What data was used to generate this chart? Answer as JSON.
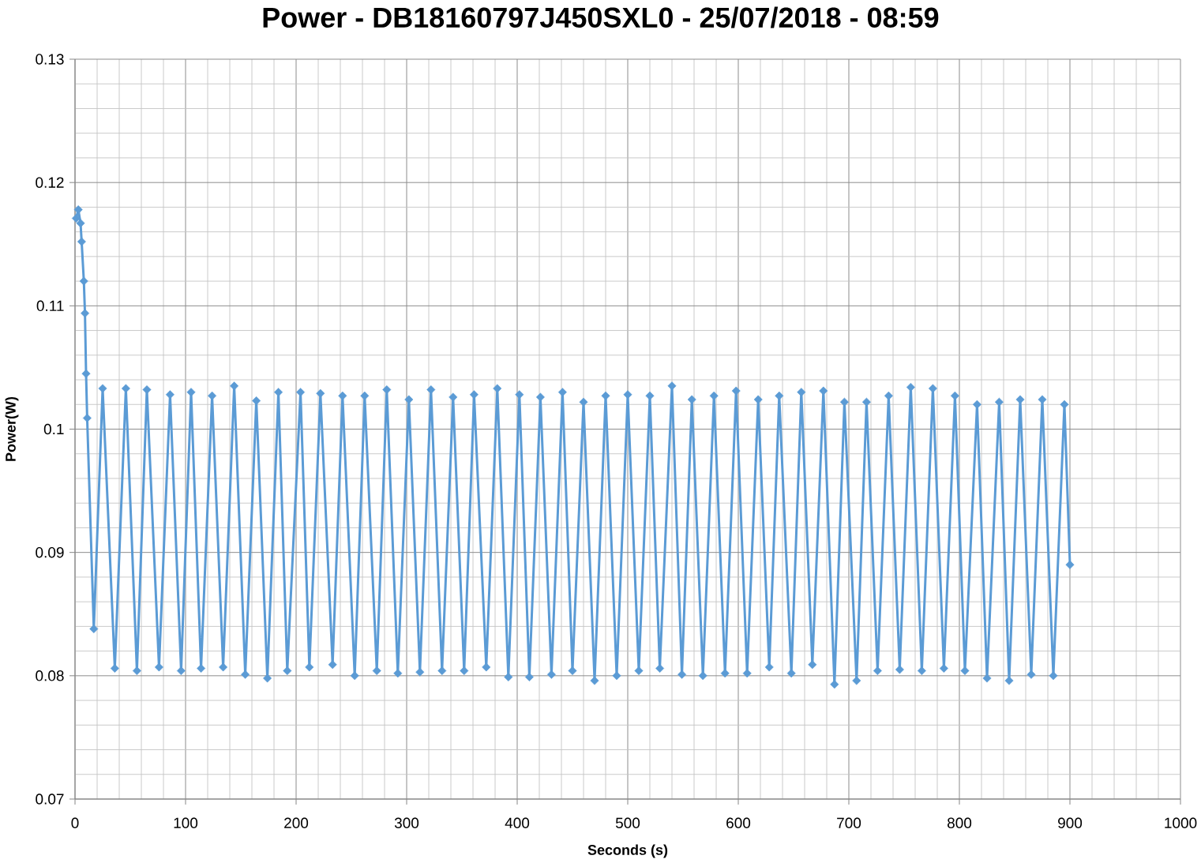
{
  "chart_data": {
    "type": "line",
    "title": "Power - DB18160797J450SXL0 - 25/07/2018 - 08:59",
    "xlabel": "Seconds (s)",
    "ylabel": "Power(W)",
    "x": [
      1,
      3,
      5,
      6,
      8,
      9,
      10,
      11,
      17,
      25,
      36,
      46,
      56,
      65,
      76,
      86,
      96,
      105,
      114,
      124,
      134,
      144,
      154,
      164,
      174,
      184,
      192,
      204,
      212,
      222,
      233,
      242,
      253,
      262,
      273,
      282,
      292,
      302,
      312,
      322,
      332,
      342,
      352,
      361,
      372,
      382,
      392,
      402,
      411,
      421,
      431,
      441,
      450,
      460,
      470,
      480,
      490,
      500,
      510,
      520,
      529,
      540,
      549,
      558,
      568,
      578,
      588,
      598,
      608,
      618,
      628,
      637,
      648,
      657,
      667,
      677,
      687,
      696,
      707,
      716,
      726,
      736,
      746,
      756,
      766,
      776,
      786,
      796,
      805,
      816,
      825,
      836,
      845,
      855,
      865,
      875,
      885,
      895,
      900
    ],
    "values": [
      0.1171,
      0.1178,
      0.1167,
      0.1152,
      0.112,
      0.1094,
      0.1045,
      0.1009,
      0.0838,
      0.1033,
      0.0806,
      0.1033,
      0.0804,
      0.1032,
      0.0807,
      0.1028,
      0.0804,
      0.103,
      0.0806,
      0.1027,
      0.0807,
      0.1035,
      0.0801,
      0.1023,
      0.0798,
      0.103,
      0.0804,
      0.103,
      0.0807,
      0.1029,
      0.0809,
      0.1027,
      0.08,
      0.1027,
      0.0804,
      0.1032,
      0.0802,
      0.1024,
      0.0803,
      0.1032,
      0.0804,
      0.1026,
      0.0804,
      0.1028,
      0.0807,
      0.1033,
      0.0799,
      0.1028,
      0.0799,
      0.1026,
      0.0801,
      0.103,
      0.0804,
      0.1022,
      0.0796,
      0.1027,
      0.08,
      0.1028,
      0.0804,
      0.1027,
      0.0806,
      0.1035,
      0.0801,
      0.1024,
      0.08,
      0.1027,
      0.0802,
      0.1031,
      0.0802,
      0.1024,
      0.0807,
      0.1027,
      0.0802,
      0.103,
      0.0809,
      0.1031,
      0.0793,
      0.1022,
      0.0796,
      0.1022,
      0.0804,
      0.1027,
      0.0805,
      0.1034,
      0.0804,
      0.1033,
      0.0806,
      0.1027,
      0.0804,
      0.102,
      0.0798,
      0.1022,
      0.0796,
      0.1024,
      0.0801,
      0.1024,
      0.08,
      0.102,
      0.089
    ],
    "color": "#5b9bd5",
    "xlim": [
      0,
      1000
    ],
    "ylim": [
      0.07,
      0.13
    ],
    "xticks": [
      0,
      100,
      200,
      300,
      400,
      500,
      600,
      700,
      800,
      900,
      1000
    ],
    "yticks": [
      0.07,
      0.08,
      0.09,
      0.1,
      0.11,
      0.12,
      0.13
    ],
    "grid": true,
    "marker": "diamond",
    "line_style": "solid"
  }
}
